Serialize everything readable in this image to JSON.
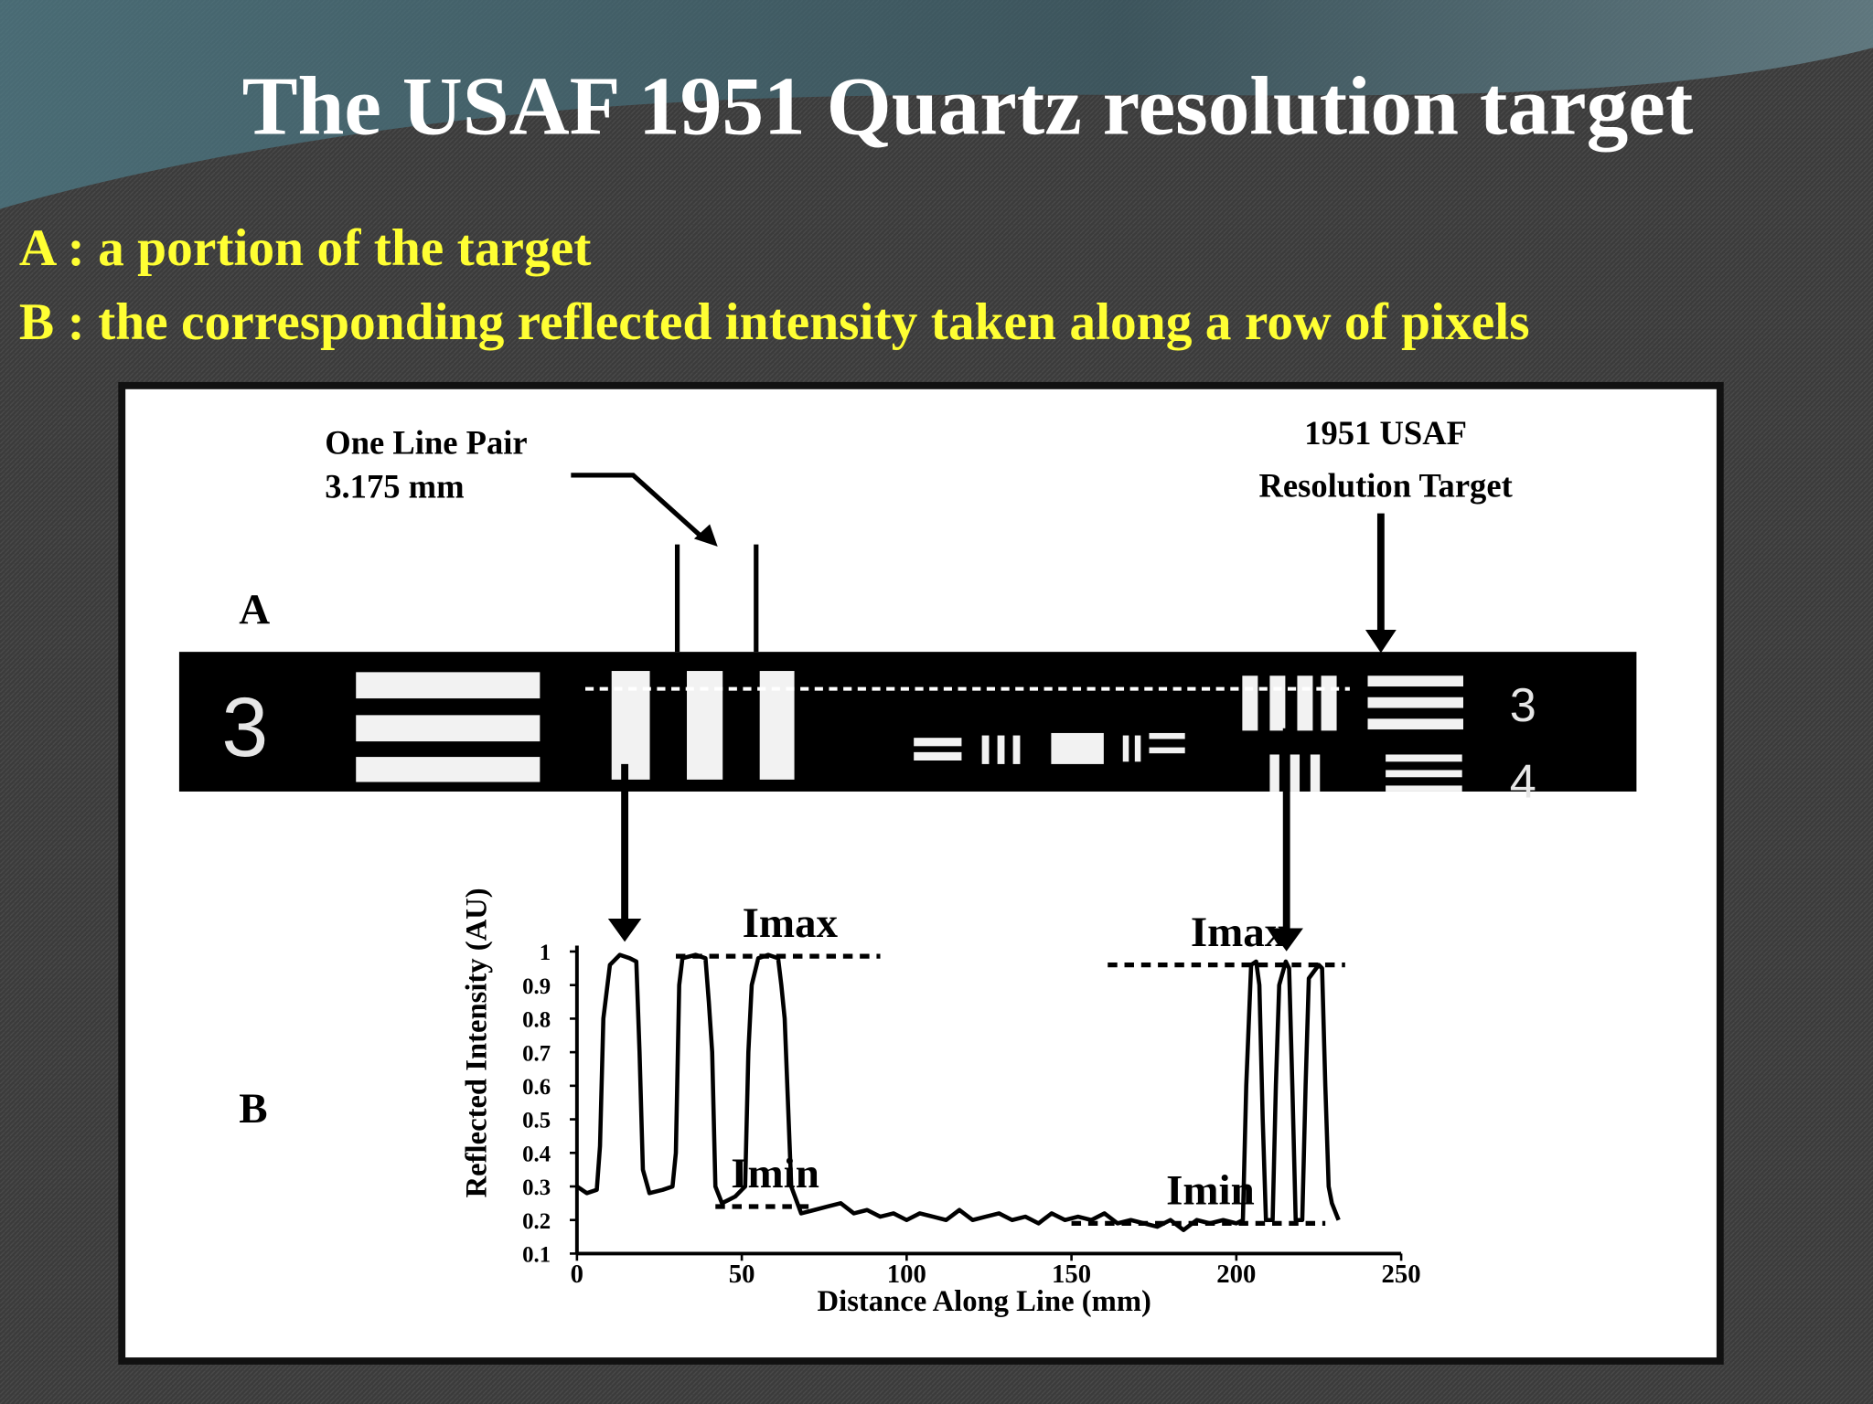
{
  "slide": {
    "title": "The USAF 1951 Quartz resolution target",
    "bullets": [
      "A : a portion of the target",
      "B : the corresponding reflected intensity taken along a row of pixels"
    ]
  },
  "figure": {
    "panel_a": "A",
    "panel_b": "B",
    "line_pair_label": [
      "One Line Pair",
      "3.175 mm"
    ],
    "target_label": [
      "1951 USAF",
      "Resolution Target"
    ],
    "target_digits": [
      "3",
      "3",
      "4"
    ]
  },
  "chart_data": {
    "type": "line",
    "xlabel": "Distance Along Line (mm)",
    "ylabel": "Reflected Intensity (AU)",
    "x": [
      0,
      3,
      6,
      7,
      8,
      10,
      13,
      16,
      18,
      19,
      20,
      22,
      26,
      29,
      30,
      31,
      32,
      36,
      39,
      40,
      41,
      42,
      44,
      46,
      48,
      50,
      51,
      52,
      53,
      55,
      58,
      61,
      62,
      63,
      65,
      68,
      72,
      76,
      80,
      84,
      88,
      92,
      96,
      100,
      104,
      108,
      112,
      116,
      120,
      124,
      128,
      132,
      136,
      140,
      144,
      148,
      152,
      156,
      160,
      164,
      168,
      172,
      176,
      180,
      184,
      188,
      192,
      196,
      200,
      202,
      203,
      204.5,
      206,
      207,
      208,
      209,
      211,
      212,
      213,
      215,
      216,
      217,
      218,
      220,
      221,
      222,
      225,
      226,
      227,
      228,
      229,
      231
    ],
    "values": [
      0.3,
      0.28,
      0.29,
      0.42,
      0.8,
      0.96,
      0.99,
      0.98,
      0.97,
      0.7,
      0.35,
      0.28,
      0.29,
      0.3,
      0.4,
      0.9,
      0.98,
      0.99,
      0.98,
      0.85,
      0.7,
      0.3,
      0.25,
      0.26,
      0.27,
      0.29,
      0.3,
      0.7,
      0.9,
      0.98,
      0.99,
      0.98,
      0.9,
      0.8,
      0.3,
      0.22,
      0.23,
      0.24,
      0.25,
      0.22,
      0.23,
      0.21,
      0.22,
      0.2,
      0.22,
      0.21,
      0.2,
      0.23,
      0.2,
      0.21,
      0.22,
      0.2,
      0.21,
      0.19,
      0.22,
      0.2,
      0.21,
      0.2,
      0.22,
      0.19,
      0.2,
      0.19,
      0.18,
      0.2,
      0.17,
      0.2,
      0.19,
      0.2,
      0.19,
      0.2,
      0.6,
      0.96,
      0.97,
      0.9,
      0.5,
      0.2,
      0.2,
      0.6,
      0.9,
      0.97,
      0.95,
      0.6,
      0.2,
      0.2,
      0.6,
      0.92,
      0.96,
      0.95,
      0.6,
      0.3,
      0.25,
      0.2
    ],
    "color": "#000000",
    "xlim": [
      0,
      250
    ],
    "ylim": [
      0.1,
      1
    ],
    "xticks": [
      0,
      50,
      100,
      150,
      200,
      250
    ],
    "yticks": [
      0.1,
      0.2,
      0.3,
      0.4,
      0.5,
      0.6,
      0.7,
      0.8,
      0.9,
      1
    ],
    "annotations": [
      {
        "text": "Imax",
        "y": 0.986,
        "x": [
          30,
          92
        ]
      },
      {
        "text": "Imax",
        "y": 0.96,
        "x": [
          161,
          233
        ]
      },
      {
        "text": "Imin",
        "y": 0.24,
        "x": [
          42,
          71
        ]
      },
      {
        "text": "Imin",
        "y": 0.19,
        "x": [
          150,
          227
        ]
      }
    ]
  }
}
